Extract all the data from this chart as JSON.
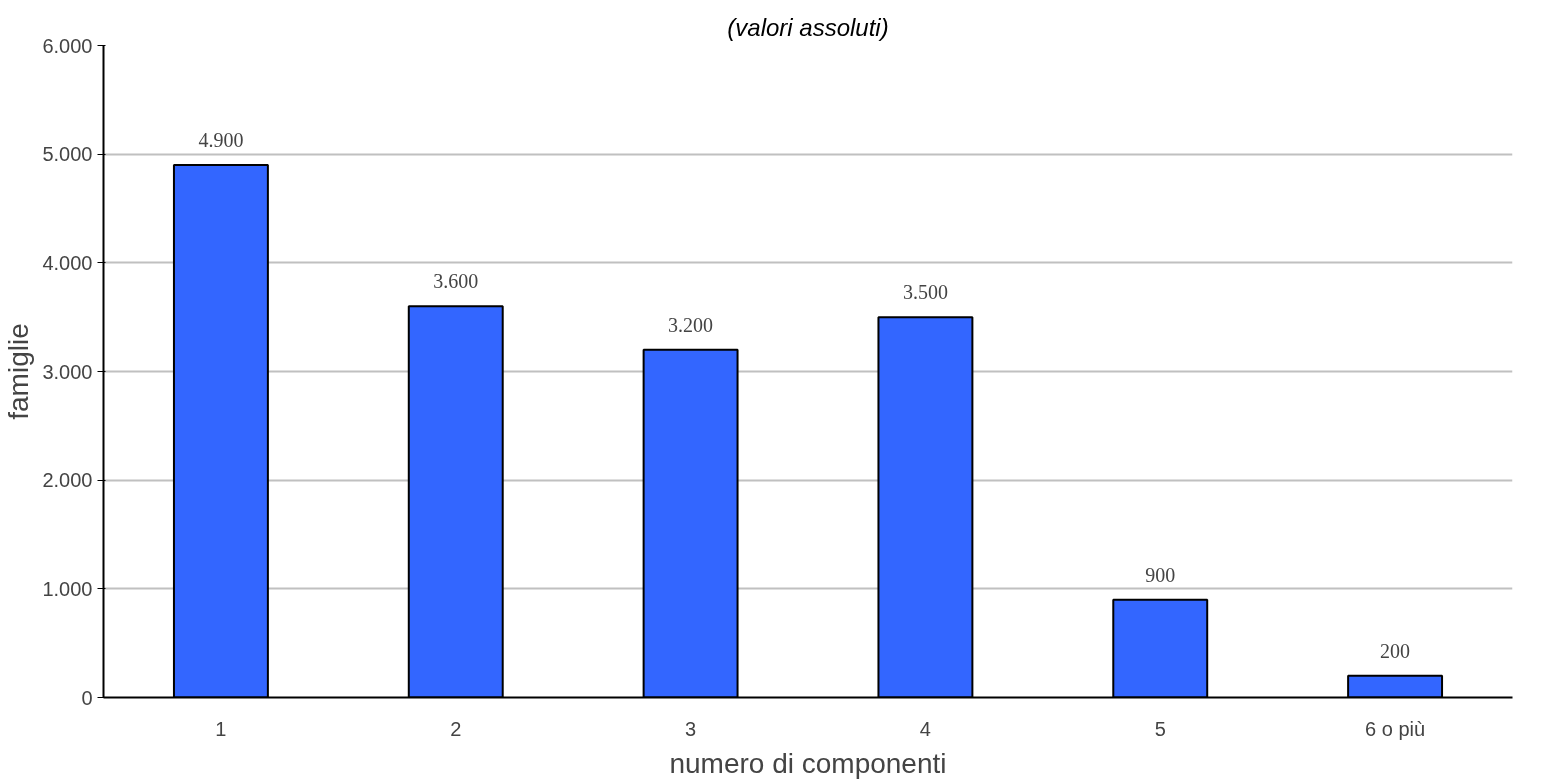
{
  "chart_data": {
    "type": "bar",
    "subtitle": "(valori assoluti)",
    "xlabel": "numero di componenti",
    "ylabel": "famiglie",
    "categories": [
      "1",
      "2",
      "3",
      "4",
      "5",
      "6 o più"
    ],
    "values": [
      4900,
      3600,
      3200,
      3500,
      900,
      200
    ],
    "color": "#3366ff",
    "value_labels": [
      "4.900",
      "3.600",
      "3.200",
      "3.500",
      "900",
      "200"
    ],
    "ylim": [
      0,
      6000
    ],
    "yticks": [
      {
        "value": 0,
        "label": "0"
      },
      {
        "value": 1000,
        "label": "1.000"
      },
      {
        "value": 2000,
        "label": "2.000"
      },
      {
        "value": 3000,
        "label": "3.000"
      },
      {
        "value": 4000,
        "label": "4.000"
      },
      {
        "value": 5000,
        "label": "5.000"
      },
      {
        "value": 6000,
        "label": "6.000"
      }
    ],
    "grid": "y"
  }
}
